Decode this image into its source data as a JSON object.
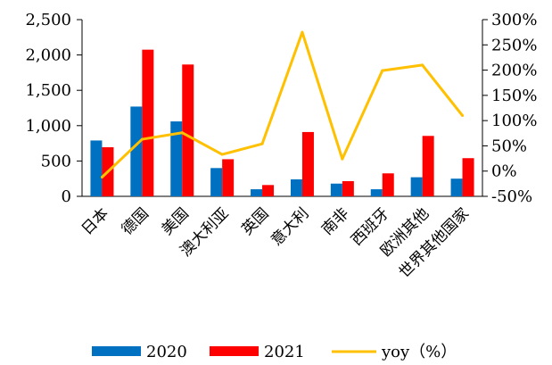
{
  "chart_data": {
    "type": "bar",
    "categories": [
      "日本",
      "德国",
      "美国",
      "澳大利亚",
      "英国",
      "意大利",
      "南非",
      "西班牙",
      "欧洲其他",
      "世界其他国家"
    ],
    "series": [
      {
        "name": "2020",
        "type": "bar",
        "axis": "left",
        "color": "#0070C0",
        "values": [
          790,
          1270,
          1060,
          400,
          100,
          240,
          180,
          100,
          270,
          250
        ]
      },
      {
        "name": "2021",
        "type": "bar",
        "axis": "left",
        "color": "#FF0000",
        "values": [
          695,
          2075,
          1865,
          525,
          160,
          910,
          215,
          325,
          855,
          540
        ]
      },
      {
        "name": "yoy（%）",
        "type": "line",
        "axis": "right",
        "color": "#FFC000",
        "values": [
          -12,
          63,
          76,
          33,
          54,
          275,
          24,
          199,
          210,
          110
        ]
      }
    ],
    "left_axis": {
      "ylim": [
        0,
        2500
      ],
      "ticks": [
        "0",
        "500",
        "1,000",
        "1,500",
        "2,000",
        "2,500"
      ],
      "tick_values": [
        0,
        500,
        1000,
        1500,
        2000,
        2500
      ]
    },
    "right_axis": {
      "ylim": [
        -50,
        300
      ],
      "ticks": [
        "-50%",
        "0%",
        "50%",
        "100%",
        "150%",
        "200%",
        "250%",
        "300%"
      ],
      "tick_values": [
        -50,
        0,
        50,
        100,
        150,
        200,
        250,
        300
      ]
    },
    "legend_position": "bottom",
    "grid": false
  },
  "legend": {
    "items": [
      {
        "label": "2020",
        "color": "#0070C0"
      },
      {
        "label": "2021",
        "color": "#FF0000"
      },
      {
        "label": "yoy（%）",
        "color": "#FFC000"
      }
    ]
  }
}
